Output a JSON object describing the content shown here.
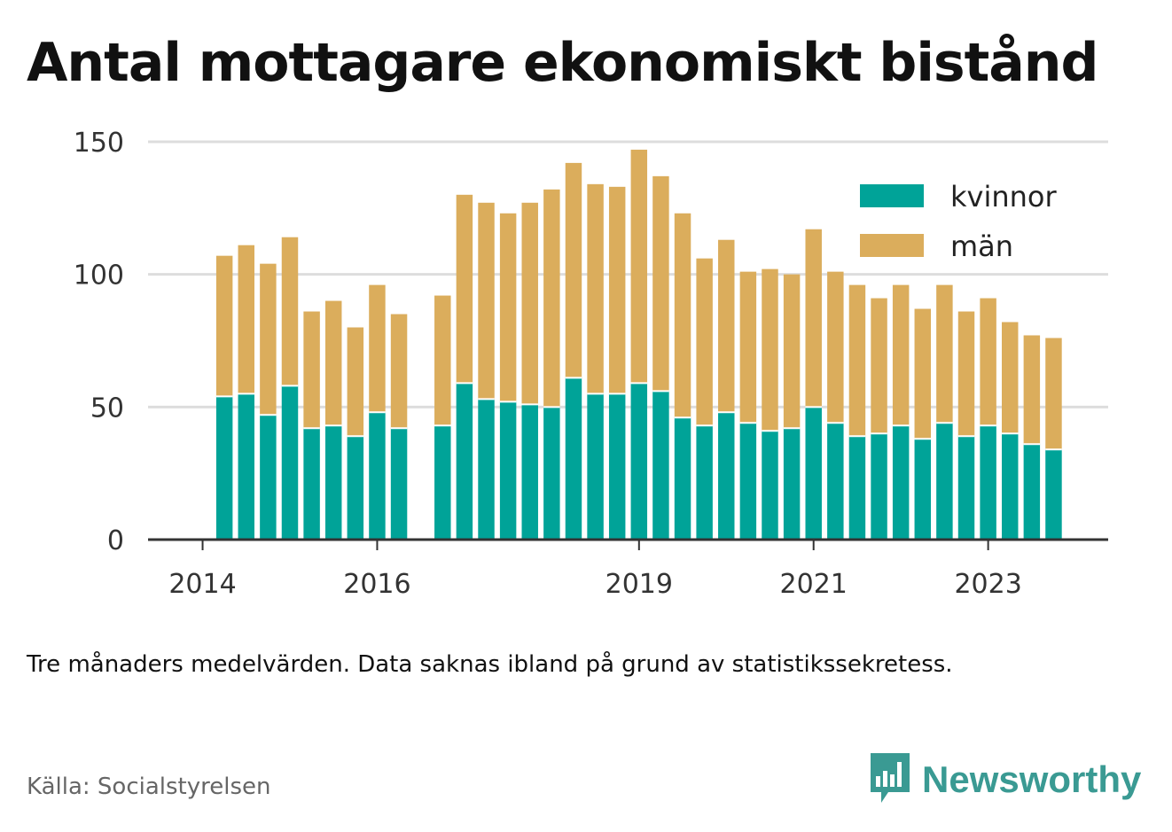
{
  "header": {
    "title": "Antal mottagare ekonomiskt bistånd"
  },
  "footer": {
    "note": "Tre månaders medelvärden. Data saknas ibland på grund av statistikssekretess.",
    "source": "Källa: Socialstyrelsen",
    "brand": "Newsworthy"
  },
  "colors": {
    "kvinnor": "#00a398",
    "man": "#dbad5c",
    "grid": "#dddddd",
    "axis": "#333333",
    "brand": "#3a9a93"
  },
  "chart_data": {
    "type": "bar",
    "stacked": true,
    "title": "Antal mottagare ekonomiskt bistånd",
    "xlabel": "",
    "ylabel": "",
    "ylim": [
      0,
      160
    ],
    "yticks": [
      0,
      50,
      100,
      150
    ],
    "xticks": [
      "2014",
      "2016",
      "2019",
      "2021",
      "2023"
    ],
    "x_index_range": [
      0,
      43
    ],
    "xtick_positions": [
      2,
      10,
      22,
      30,
      38
    ],
    "grid": true,
    "legend_position": "top-right",
    "x": [
      3,
      4,
      5,
      6,
      7,
      8,
      9,
      10,
      11,
      13,
      14,
      15,
      16,
      17,
      18,
      19,
      20,
      21,
      22,
      23,
      24,
      25,
      26,
      27,
      28,
      29,
      30,
      31,
      32,
      33,
      34,
      35,
      36,
      37,
      38,
      39,
      40,
      41
    ],
    "series": [
      {
        "name": "kvinnor",
        "values": [
          54,
          55,
          47,
          58,
          42,
          43,
          39,
          48,
          42,
          43,
          59,
          53,
          52,
          51,
          50,
          61,
          55,
          55,
          59,
          56,
          46,
          43,
          48,
          44,
          41,
          42,
          50,
          44,
          39,
          40,
          43,
          38,
          44,
          39,
          43,
          40,
          36,
          34
        ]
      },
      {
        "name": "män",
        "values": [
          53,
          56,
          57,
          56,
          44,
          47,
          41,
          48,
          43,
          49,
          71,
          74,
          71,
          76,
          82,
          81,
          79,
          78,
          88,
          81,
          77,
          63,
          65,
          57,
          61,
          58,
          67,
          57,
          57,
          51,
          53,
          49,
          52,
          47,
          48,
          42,
          41,
          42
        ]
      }
    ]
  }
}
